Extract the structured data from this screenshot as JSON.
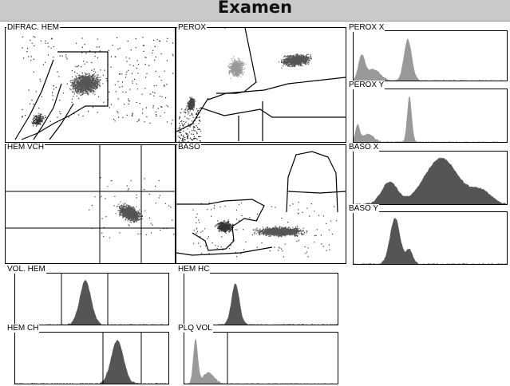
{
  "header": {
    "title": "Examen"
  },
  "panels": {
    "difrac_hem": "DIFRAC. HEM",
    "perox": "PEROX",
    "perox_x": "PEROX X",
    "perox_y": "PEROX Y",
    "hem_vch": "HEM VCH",
    "baso": "BASO",
    "baso_x": "BASO X",
    "baso_y": "BASO Y",
    "vol_hem": "VOL. HEM",
    "hem_hc": "HEM HC",
    "hem_ch": "HEM CH",
    "plq_vol": "PLQ VOL"
  },
  "colors": {
    "dense": "#555555",
    "light": "#999999",
    "frame": "#000000",
    "header_bg": "#c9c9c9"
  }
}
